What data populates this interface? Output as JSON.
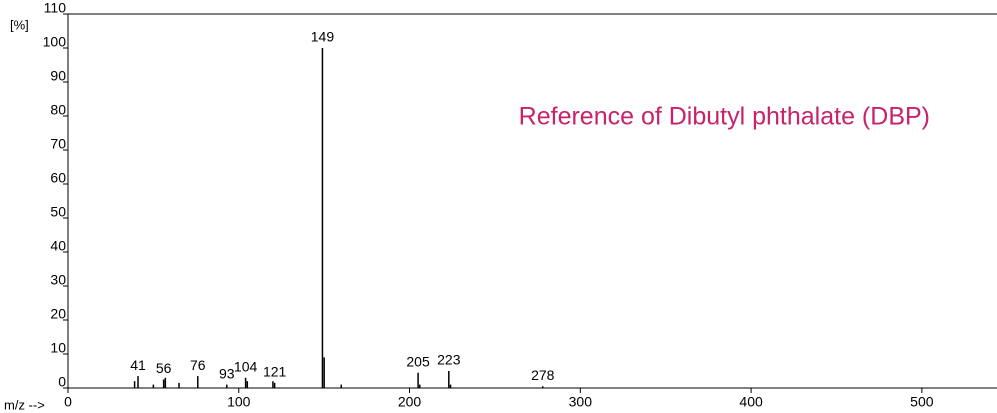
{
  "chart_data": {
    "type": "stem",
    "annotation": "Reference of Dibutyl phthalate (DBP)",
    "annotation_color": "#c8226c",
    "y_label": "[%]",
    "x_label": "m/z -->",
    "color": "#000000",
    "labeled_peaks": {
      "x": [
        41,
        56,
        76,
        93,
        104,
        121,
        149,
        205,
        223,
        278
      ],
      "values": [
        3.5,
        2.5,
        3.5,
        1,
        3,
        1.5,
        100,
        4.5,
        5,
        0.5
      ]
    },
    "other_peaks": {
      "x": [
        39,
        50,
        57,
        65,
        105,
        120,
        150,
        160,
        206,
        224
      ],
      "values": [
        2,
        1,
        3,
        1.5,
        2,
        2,
        9,
        1,
        1,
        1
      ]
    },
    "xlim": [
      0,
      544
    ],
    "xticks": [
      0,
      100,
      200,
      300,
      400,
      500
    ],
    "ylim": [
      0,
      110
    ],
    "yticks": [
      0,
      10,
      20,
      30,
      40,
      50,
      60,
      70,
      80,
      90,
      100,
      110
    ]
  }
}
